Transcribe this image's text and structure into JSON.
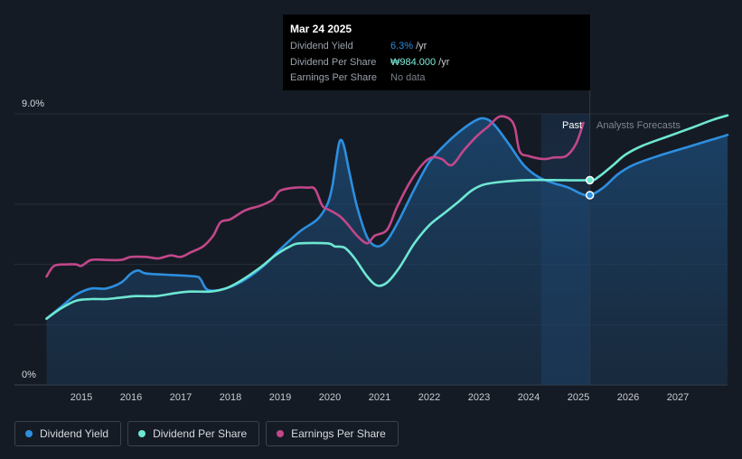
{
  "tooltip": {
    "date": "Mar 24 2025",
    "rows": [
      {
        "label": "Dividend Yield",
        "value": "6.3%",
        "unit": "/yr",
        "color": "#2d8fe0"
      },
      {
        "label": "Dividend Per Share",
        "value": "₩984.000",
        "unit": "/yr",
        "color": "#7eeedd"
      },
      {
        "label": "Earnings Per Share",
        "value": "No data",
        "unit": "",
        "color": "#7a8089"
      }
    ]
  },
  "labels": {
    "past": "Past",
    "forecast": "Analysts Forecasts"
  },
  "legend": [
    {
      "label": "Dividend Yield",
      "color": "#2d8fe0"
    },
    {
      "label": "Dividend Per Share",
      "color": "#6ee7d2"
    },
    {
      "label": "Earnings Per Share",
      "color": "#c2478a"
    }
  ],
  "chart_data": {
    "type": "line",
    "ylim": [
      0,
      9
    ],
    "y_ticks": [
      {
        "value": 0,
        "label": "0%"
      },
      {
        "value": 9,
        "label": "9.0%"
      }
    ],
    "xlim": [
      2014.2,
      2028.0
    ],
    "x_ticks": [
      "2015",
      "2016",
      "2017",
      "2018",
      "2019",
      "2020",
      "2021",
      "2022",
      "2023",
      "2024",
      "2025",
      "2026",
      "2027"
    ],
    "x_tick_values": [
      2015,
      2016,
      2017,
      2018,
      2019,
      2020,
      2021,
      2022,
      2023,
      2024,
      2025,
      2026,
      2027
    ],
    "forecast_start": 2024.25,
    "present": 2025.23,
    "series": [
      {
        "name": "Dividend Yield",
        "color": "#2d8fe0",
        "filled": true,
        "points": [
          [
            2014.3,
            2.2
          ],
          [
            2014.6,
            2.6
          ],
          [
            2014.9,
            3.0
          ],
          [
            2015.2,
            3.2
          ],
          [
            2015.5,
            3.2
          ],
          [
            2015.8,
            3.4
          ],
          [
            2016.0,
            3.7
          ],
          [
            2016.15,
            3.8
          ],
          [
            2016.3,
            3.7
          ],
          [
            2016.8,
            3.65
          ],
          [
            2017.3,
            3.6
          ],
          [
            2017.4,
            3.5
          ],
          [
            2017.55,
            3.15
          ],
          [
            2017.9,
            3.2
          ],
          [
            2018.3,
            3.5
          ],
          [
            2018.7,
            4.0
          ],
          [
            2019.0,
            4.5
          ],
          [
            2019.4,
            5.1
          ],
          [
            2019.75,
            5.5
          ],
          [
            2019.95,
            6.0
          ],
          [
            2020.05,
            6.6
          ],
          [
            2020.13,
            7.5
          ],
          [
            2020.2,
            8.1
          ],
          [
            2020.28,
            7.95
          ],
          [
            2020.4,
            7.0
          ],
          [
            2020.55,
            5.9
          ],
          [
            2020.75,
            4.9
          ],
          [
            2020.95,
            4.6
          ],
          [
            2021.15,
            4.8
          ],
          [
            2021.4,
            5.5
          ],
          [
            2021.7,
            6.5
          ],
          [
            2022.0,
            7.4
          ],
          [
            2022.3,
            7.95
          ],
          [
            2022.6,
            8.4
          ],
          [
            2022.9,
            8.75
          ],
          [
            2023.1,
            8.85
          ],
          [
            2023.3,
            8.65
          ],
          [
            2023.6,
            8.0
          ],
          [
            2023.9,
            7.3
          ],
          [
            2024.2,
            6.9
          ],
          [
            2024.5,
            6.7
          ],
          [
            2024.8,
            6.55
          ],
          [
            2025.05,
            6.35
          ],
          [
            2025.23,
            6.3
          ],
          [
            2025.5,
            6.55
          ],
          [
            2025.8,
            7.0
          ],
          [
            2026.1,
            7.3
          ],
          [
            2026.6,
            7.6
          ],
          [
            2027.2,
            7.9
          ],
          [
            2027.7,
            8.15
          ],
          [
            2028.0,
            8.3
          ]
        ]
      },
      {
        "name": "Dividend Per Share",
        "color": "#6ee7d2",
        "filled": false,
        "points": [
          [
            2014.3,
            2.2
          ],
          [
            2014.6,
            2.55
          ],
          [
            2014.9,
            2.8
          ],
          [
            2015.2,
            2.85
          ],
          [
            2015.5,
            2.85
          ],
          [
            2015.8,
            2.9
          ],
          [
            2016.1,
            2.95
          ],
          [
            2016.5,
            2.95
          ],
          [
            2016.9,
            3.05
          ],
          [
            2017.2,
            3.1
          ],
          [
            2017.6,
            3.1
          ],
          [
            2017.9,
            3.2
          ],
          [
            2018.2,
            3.45
          ],
          [
            2018.6,
            3.9
          ],
          [
            2018.9,
            4.3
          ],
          [
            2019.2,
            4.6
          ],
          [
            2019.4,
            4.7
          ],
          [
            2019.95,
            4.7
          ],
          [
            2020.1,
            4.6
          ],
          [
            2020.3,
            4.55
          ],
          [
            2020.5,
            4.2
          ],
          [
            2020.75,
            3.6
          ],
          [
            2020.95,
            3.3
          ],
          [
            2021.15,
            3.4
          ],
          [
            2021.4,
            3.9
          ],
          [
            2021.7,
            4.7
          ],
          [
            2022.0,
            5.3
          ],
          [
            2022.3,
            5.7
          ],
          [
            2022.6,
            6.1
          ],
          [
            2022.85,
            6.45
          ],
          [
            2023.1,
            6.65
          ],
          [
            2023.5,
            6.75
          ],
          [
            2024.0,
            6.8
          ],
          [
            2024.5,
            6.8
          ],
          [
            2025.23,
            6.8
          ],
          [
            2025.4,
            6.9
          ],
          [
            2025.7,
            7.3
          ],
          [
            2025.95,
            7.65
          ],
          [
            2026.3,
            7.95
          ],
          [
            2026.8,
            8.25
          ],
          [
            2027.3,
            8.55
          ],
          [
            2027.7,
            8.8
          ],
          [
            2028.0,
            8.95
          ]
        ]
      },
      {
        "name": "Earnings Per Share",
        "color": "#c2478a",
        "filled": false,
        "points": [
          [
            2014.3,
            3.6
          ],
          [
            2014.45,
            3.95
          ],
          [
            2014.7,
            4.0
          ],
          [
            2014.9,
            4.0
          ],
          [
            2015.0,
            3.95
          ],
          [
            2015.2,
            4.15
          ],
          [
            2015.5,
            4.15
          ],
          [
            2015.8,
            4.15
          ],
          [
            2016.0,
            4.25
          ],
          [
            2016.3,
            4.25
          ],
          [
            2016.55,
            4.2
          ],
          [
            2016.8,
            4.3
          ],
          [
            2017.0,
            4.25
          ],
          [
            2017.2,
            4.4
          ],
          [
            2017.45,
            4.6
          ],
          [
            2017.65,
            4.95
          ],
          [
            2017.8,
            5.4
          ],
          [
            2018.0,
            5.5
          ],
          [
            2018.3,
            5.8
          ],
          [
            2018.6,
            5.95
          ],
          [
            2018.85,
            6.15
          ],
          [
            2019.0,
            6.45
          ],
          [
            2019.3,
            6.55
          ],
          [
            2019.55,
            6.55
          ],
          [
            2019.7,
            6.5
          ],
          [
            2019.85,
            5.95
          ],
          [
            2020.0,
            5.8
          ],
          [
            2020.2,
            5.6
          ],
          [
            2020.35,
            5.35
          ],
          [
            2020.55,
            4.95
          ],
          [
            2020.75,
            4.7
          ],
          [
            2020.9,
            4.95
          ],
          [
            2021.15,
            5.15
          ],
          [
            2021.35,
            5.9
          ],
          [
            2021.6,
            6.7
          ],
          [
            2021.85,
            7.3
          ],
          [
            2022.05,
            7.55
          ],
          [
            2022.25,
            7.5
          ],
          [
            2022.45,
            7.3
          ],
          [
            2022.7,
            7.8
          ],
          [
            2022.95,
            8.25
          ],
          [
            2023.2,
            8.6
          ],
          [
            2023.4,
            8.9
          ],
          [
            2023.6,
            8.85
          ],
          [
            2023.72,
            8.55
          ],
          [
            2023.82,
            7.75
          ],
          [
            2024.0,
            7.6
          ],
          [
            2024.3,
            7.5
          ],
          [
            2024.5,
            7.55
          ],
          [
            2024.75,
            7.6
          ],
          [
            2024.95,
            8.0
          ],
          [
            2025.1,
            8.7
          ]
        ]
      }
    ]
  }
}
